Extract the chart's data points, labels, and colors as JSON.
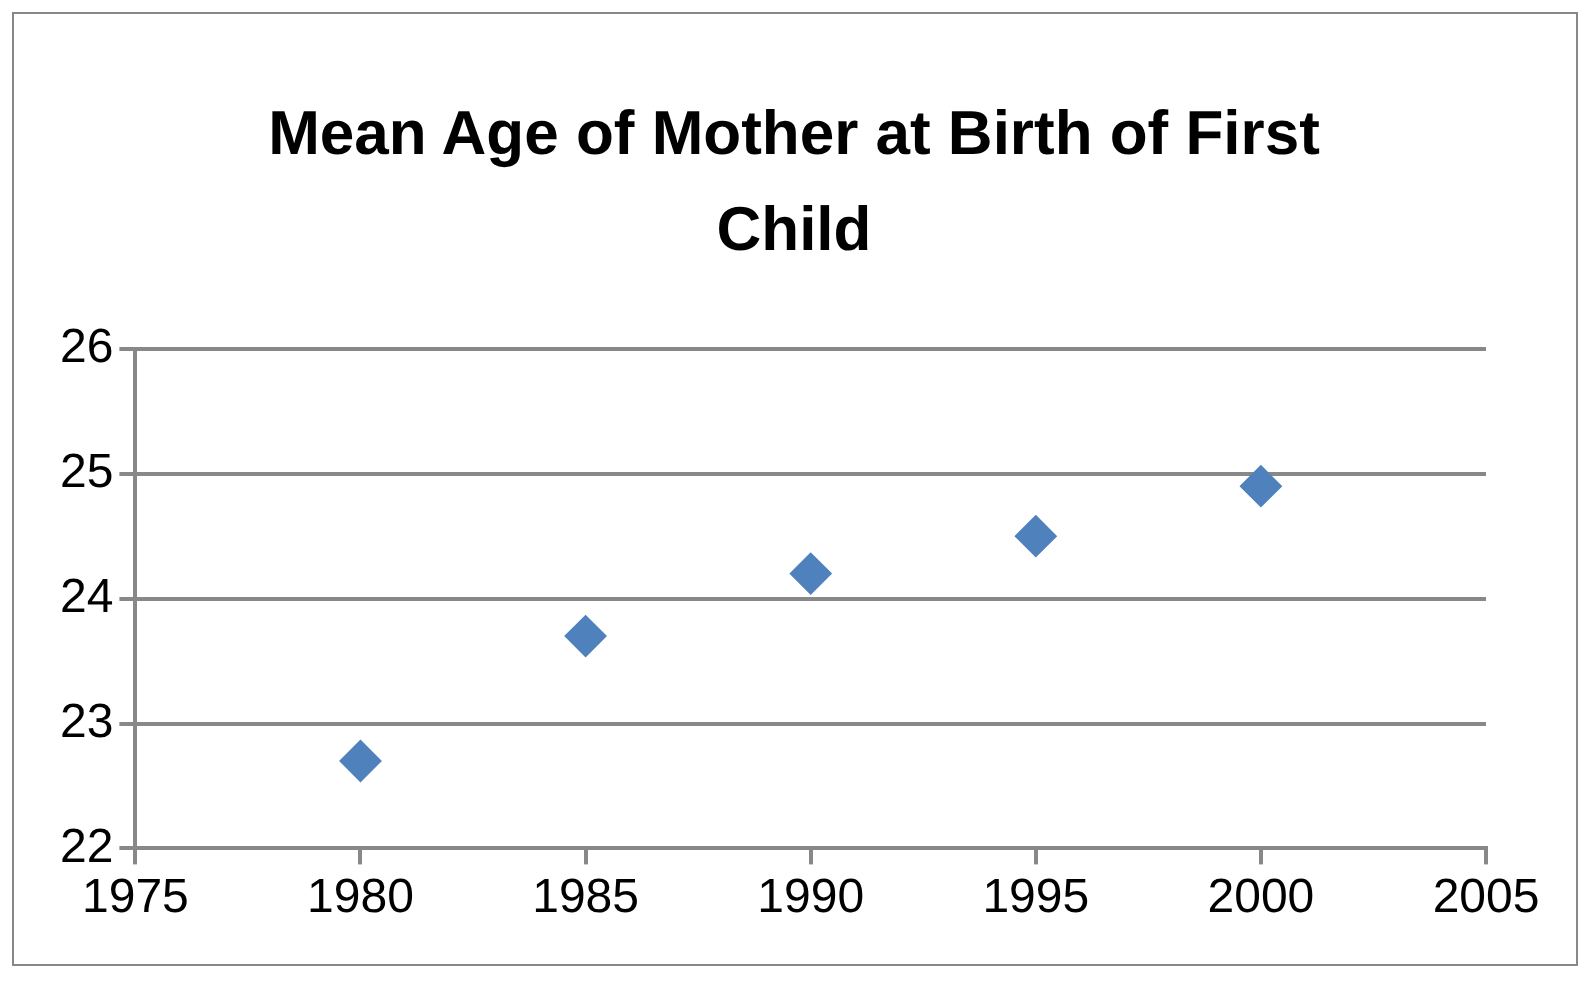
{
  "chart_data": {
    "type": "scatter",
    "title": "Mean Age of Mother at Birth of First Child",
    "x": [
      1980,
      1985,
      1990,
      1995,
      2000
    ],
    "values": [
      22.7,
      23.7,
      24.2,
      24.5,
      24.9
    ],
    "color": "#4f81bd",
    "xlim": [
      1975,
      2005
    ],
    "xticks": [
      1975,
      1980,
      1985,
      1990,
      1995,
      2000,
      2005
    ],
    "ylim": [
      22,
      26
    ],
    "yticks": [
      22,
      23,
      24,
      25,
      26
    ],
    "grid": "y",
    "marker": "diamond",
    "legend": false
  }
}
